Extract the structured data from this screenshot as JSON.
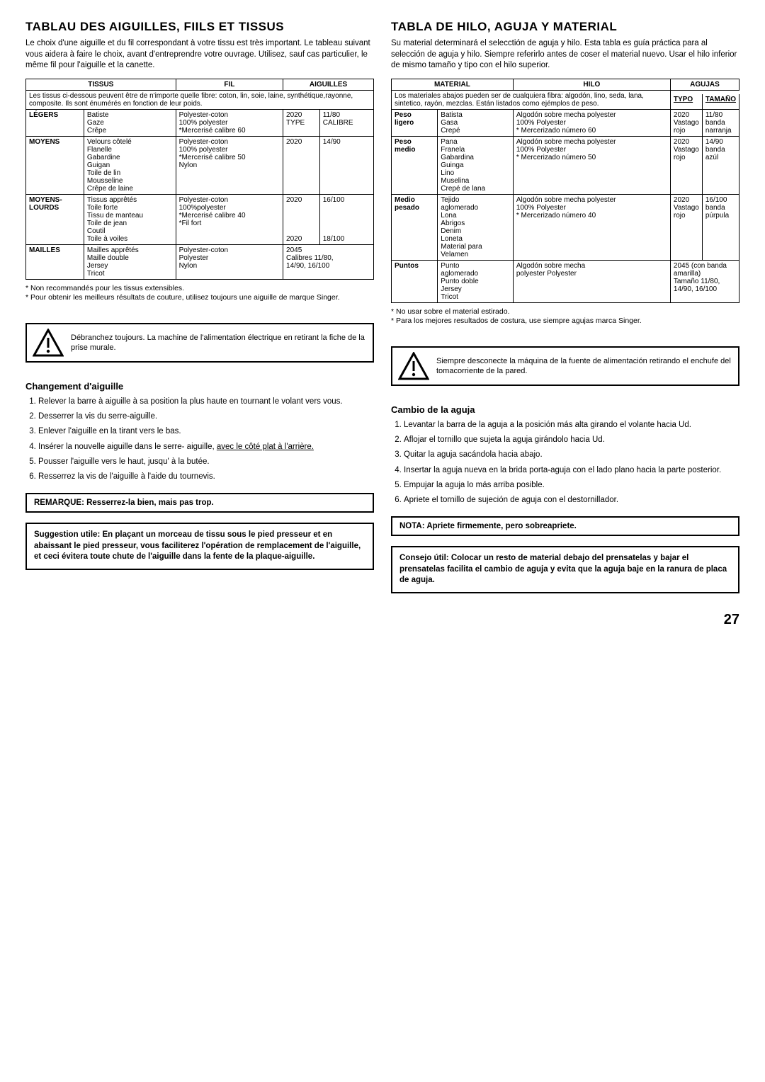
{
  "left": {
    "title": "TABLAU DES AIGUILLES, FIILS ET TISSUS",
    "intro": "Le choix d'une aiguille et du fil correspondant à votre tissu est très important. Le tableau suivant vous aidera à faire le choix, avant d'entreprendre votre ouvrage. Utilisez, sauf cas particulier, le même fil pour l'aiguille et la canette.",
    "table": {
      "head": [
        "TISSUS",
        "FIL",
        "AIGUILLES"
      ],
      "note": "Les tissus ci-dessous peuvent être de n'importe quelle fibre: coton, lin, soie, laine, synthétique,rayonne, composite. Ils sont énumérés en fonction de leur poids.",
      "rows": [
        {
          "cat": "LÉGERS",
          "tissus": "Batiste\nGaze\nCrêpe",
          "fil": "Polyester-coton\n100% polyester\n*Mercerisé calibre 60",
          "type": "2020\nTYPE",
          "cal": "11/80\nCALIBRE"
        },
        {
          "cat": "MOYENS",
          "tissus": "Velours côtelé\nFlanelle\nGabardine\nGuigan\nToile de lin\nMousseline\nCrêpe de laine",
          "fil": "Polyester-coton\n100% polyester\n*Mercerisé calibre 50\nNylon",
          "type": "2020",
          "cal": "14/90"
        },
        {
          "cat": "MOYENS-\nLOURDS",
          "tissus": "Tissus apprêtés\nToile forte\nTissu de manteau\nToile de jean\nCoutil\nToile à voiles",
          "fil": "Polyester-coton\n100%polyester\n*Mercerisé calibre 40\n*Fil fort",
          "type": "2020\n\n\n\n\n2020",
          "cal": "16/100\n\n\n\n\n18/100"
        },
        {
          "cat": "MAILLES",
          "tissus": "Mailles apprêtés\nMaille double\nJersey\nTricot",
          "fil": "Polyester-coton\nPolyester\nNylon",
          "type": "2045\nCalibres 11/80,\n14/90, 16/100",
          "cal": ""
        }
      ]
    },
    "footnotes": [
      "* Non recommandés pour les tissus extensibles.",
      "* Pour obtenir les meilleurs résultats de couture, utilisez toujours une aiguille de marque Singer."
    ],
    "warn": "Débranchez toujours. La machine de l'alimentation électrique en retirant la fiche de la prise murale.",
    "h3": "Changement d'aiguille",
    "steps": [
      "Relever la barre à aiguille à sa position la plus haute en tournant le volant vers vous.",
      "Desserrer la vis du serre-aiguille.",
      "Enlever l'aiguille en la tirant vers le bas.",
      "Insérer la nouvelle aiguille dans le serre- aiguille, <u>avec le côté plat à l'arrière.</u>",
      "Pousser l'aiguille vers le haut, jusqu' à la butée.",
      "Resserrez la vis de l'aiguille à l'aide du tournevis."
    ],
    "note": "REMARQUE: Resserrez-la bien, mais pas trop.",
    "suggest": "Suggestion utile: En plaçant un morceau de tissu sous le pied presseur et en abaissant le pied presseur, vous faciliterez l'opération de remplacement de l'aiguille, et ceci évitera toute chute de l'aiguille dans la fente de la plaque-aiguille."
  },
  "right": {
    "title": "TABLA DE HILO,  AGUJA Y MATERIAL",
    "intro": "Su material determinará el selecctión de aguja y hilo. Esta tabla es guía práctica para al selección de  aguja  y hilo. Siempre referirlo antes de coser el material nuevo. Usar el hilo inferior de mismo tamaño y tipo con el hilo superior.",
    "table": {
      "head": [
        "MATERIAL",
        "HILO",
        "AGUJAS"
      ],
      "note": "Los materiales abajos pueden ser de cualquiera fibra: algodón, lino, seda, lana, sintetico, rayón, mezclas. Están listados como ejémplos de peso.",
      "subhead": [
        "TYPO",
        "TAMAÑO"
      ],
      "rows": [
        {
          "cat": "Peso\nligero",
          "mat": "Batista\nGasa\nCrepé",
          "hilo": "Algodón sobre mecha polyester\n100% Polyester\n* Mercerizado número 60",
          "typo": "2020\nVastago\nrojo",
          "tam": "11/80\nbanda\nnarranja"
        },
        {
          "cat": "Peso\nmedio",
          "mat": "Pana\nFranela\nGabardina\nGuinga\nLino\nMuselina\nCrepé de lana",
          "hilo": "Algodón sobre mecha polyester\n100% Polyester\n* Mercerizado número 50",
          "typo": "2020\nVastago\nrojo",
          "tam": "14/90\nbanda\nazúl"
        },
        {
          "cat": "Medio\npesado",
          "mat": "Tejido\naglomerado\nLona\nAbrigos\nDenim\nLoneta\nMaterial para\nVelamen",
          "hilo": "Algodón sobre mecha polyester\n100% Polyester\n* Mercerizado número 40",
          "typo": "2020\nVastago\nrojo",
          "tam": "16/100\nbanda\npúrpula"
        },
        {
          "cat": "Puntos",
          "mat": "Punto\naglomerado\nPunto doble\nJersey\nTricot",
          "hilo": "Algodón sobre mecha\npolyester Polyester",
          "typo": "2045 (con banda\namarilla)\nTamaño 11/80,\n14/90, 16/100",
          "tam": ""
        }
      ]
    },
    "footnotes": [
      "* No usar sobre el material estirado.",
      "* Para los mejores resultados de costura, use siempre agujas marca Singer."
    ],
    "warn": "Siempre desconecte la máquina de la fuente de alimentación retirando el enchufe del tomacorriente de la pared.",
    "h3": "Cambio de la aguja",
    "steps": [
      "Levantar la barra de la aguja a la posición más alta girando el volante hacia Ud.",
      "Aflojar el tornillo que sujeta la aguja girándolo hacia Ud.",
      "Quitar la aguja sacándola hacia abajo.",
      "Insertar la aguja nueva en la brida porta-aguja con el lado plano hacia la parte posterior.",
      "Empujar la aguja lo más arriba posible.",
      "Apriete el tornillo de sujeción de aguja con el destornillador."
    ],
    "note": "NOTA: Apriete firmemente, pero sobreapriete.",
    "suggest": "Consejo útil: Colocar un resto de material debajo del prensatelas y bajar el prensatelas facilita el cambio de aguja y evita que la aguja baje en la ranura de placa de aguja."
  },
  "pagenum": "27",
  "warn_icon_color": "#000000"
}
